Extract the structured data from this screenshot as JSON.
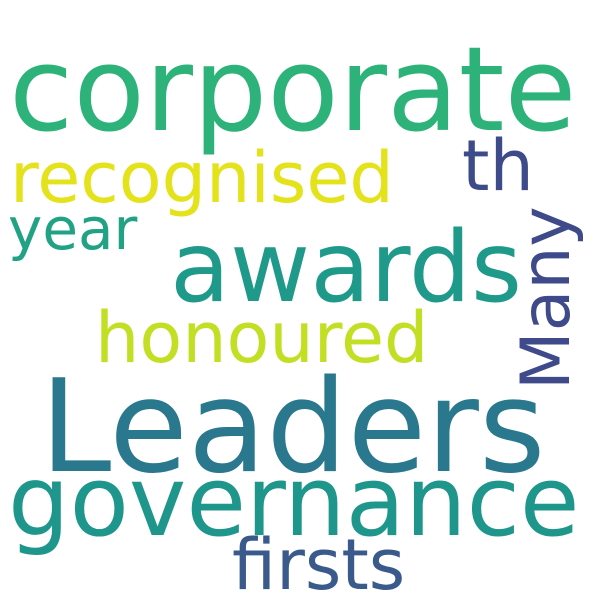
{
  "word_cloud": {
    "words": [
      {
        "text": "corporate",
        "color": "#2db37a"
      },
      {
        "text": "recognised",
        "color": "#e3e21b"
      },
      {
        "text": "th",
        "color": "#3d4b8a"
      },
      {
        "text": "year",
        "color": "#22a285"
      },
      {
        "text": "awards",
        "color": "#1f9a8a"
      },
      {
        "text": "Many",
        "color": "#3e4a89"
      },
      {
        "text": "honoured",
        "color": "#c2df23"
      },
      {
        "text": "Leaders",
        "color": "#2a788e"
      },
      {
        "text": "governance",
        "color": "#1f968b"
      },
      {
        "text": "firsts",
        "color": "#3b5a8c"
      }
    ]
  }
}
